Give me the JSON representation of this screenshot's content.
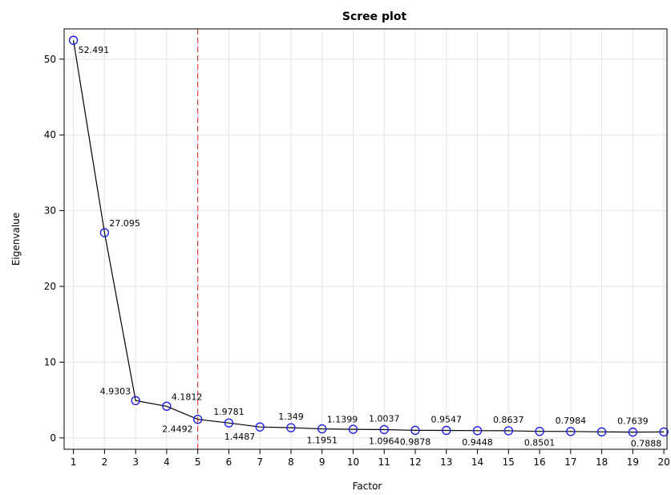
{
  "chart_data": {
    "type": "line",
    "title": "Scree plot",
    "xlabel": "Factor",
    "ylabel": "Eigenvalue",
    "x": [
      1,
      2,
      3,
      4,
      5,
      6,
      7,
      8,
      9,
      10,
      11,
      12,
      13,
      14,
      15,
      16,
      17,
      18,
      19,
      20
    ],
    "series": [
      {
        "values": [
          52.491,
          27.095,
          4.9303,
          4.1812,
          2.4492,
          1.9781,
          1.4487,
          1.349,
          1.1951,
          1.1399,
          1.0964,
          1.0037,
          0.9878,
          0.9547,
          0.9448,
          0.8637,
          0.8501,
          0.7984,
          0.7639,
          0.7888
        ]
      }
    ],
    "data_labels": [
      {
        "x": 1,
        "text": "52.491",
        "pos": "below-right"
      },
      {
        "x": 2,
        "text": "27.095",
        "pos": "above-right"
      },
      {
        "x": 3,
        "text": "4.9303",
        "pos": "above-left"
      },
      {
        "x": 4,
        "text": "4.1812",
        "pos": "above-right"
      },
      {
        "x": 5,
        "text": "2.4492",
        "pos": "below-left"
      },
      {
        "x": 6,
        "text": "1.9781",
        "pos": "above"
      },
      {
        "x": 7,
        "text": "1.4487",
        "pos": "below-left"
      },
      {
        "x": 8,
        "text": "1.349",
        "pos": "above"
      },
      {
        "x": 9,
        "text": "1.1951",
        "pos": "below"
      },
      {
        "x": 9,
        "text": "1.1399",
        "pos": "above-right"
      },
      {
        "x": 11,
        "text": "1.0964",
        "pos": "below"
      },
      {
        "x": 11,
        "text": "1.0037",
        "pos": "above"
      },
      {
        "x": 12,
        "text": "0.9878",
        "pos": "below"
      },
      {
        "x": 13,
        "text": "0.9547",
        "pos": "above"
      },
      {
        "x": 14,
        "text": "0.9448",
        "pos": "below"
      },
      {
        "x": 15,
        "text": "0.8637",
        "pos": "above"
      },
      {
        "x": 16,
        "text": "0.8501",
        "pos": "below"
      },
      {
        "x": 17,
        "text": "0.7984",
        "pos": "above"
      },
      {
        "x": 19,
        "text": "0.7639",
        "pos": "above"
      },
      {
        "x": 20,
        "text": "0.7888",
        "pos": "below"
      }
    ],
    "reference_line": {
      "x": 5,
      "color": "#ff0000",
      "style": "dashed"
    },
    "xlim": [
      0.7,
      20.1
    ],
    "ylim": [
      -1.5,
      54
    ],
    "x_ticks": [
      1,
      2,
      3,
      4,
      5,
      6,
      7,
      8,
      9,
      10,
      11,
      12,
      13,
      14,
      15,
      16,
      17,
      18,
      19,
      20
    ],
    "y_ticks": [
      0,
      10,
      20,
      30,
      40,
      50
    ],
    "grid": true,
    "marker": "circle",
    "colors": {
      "line": "#000000",
      "marker": "#1f1fe6",
      "grid": "#e4e4e4",
      "reference": "#e0211d"
    }
  }
}
